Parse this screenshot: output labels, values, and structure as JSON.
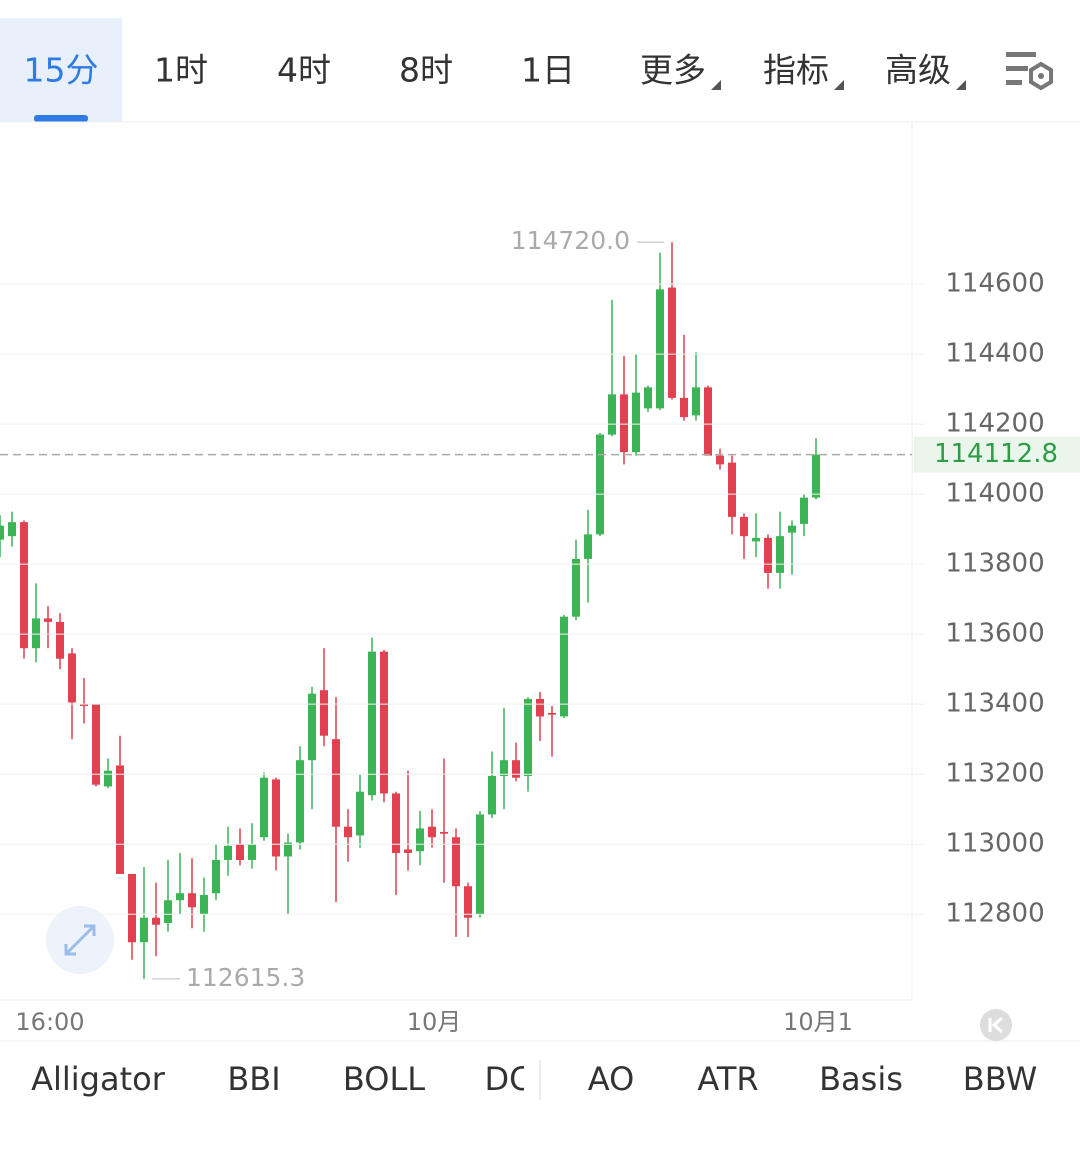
{
  "tabs": [
    "15分",
    "1时",
    "4时",
    "8时",
    "1日",
    "更多",
    "指标",
    "高级"
  ],
  "indicators": [
    "Alligator",
    "BBI",
    "BOLL",
    "DC",
    "AO",
    "ATR",
    "Basis",
    "BBW"
  ],
  "chart_data": {
    "type": "candlestick",
    "categories": [
      null,
      null,
      null,
      null,
      "16:00",
      null,
      null,
      null,
      null,
      null,
      null,
      null,
      null,
      null,
      null,
      null,
      null,
      null,
      null,
      null,
      null,
      null,
      null,
      null,
      null,
      null,
      null,
      null,
      null,
      null,
      null,
      null,
      null,
      null,
      null,
      null,
      "10月",
      null,
      null,
      null,
      null,
      null,
      null,
      null,
      null,
      null,
      null,
      null,
      null,
      null,
      null,
      null,
      null,
      null,
      null,
      null,
      null,
      null,
      null,
      null,
      null,
      null,
      null,
      null,
      null,
      null,
      null,
      null,
      "10月1"
    ],
    "open": [
      113870,
      113880,
      113920,
      113560,
      113645,
      113635,
      113545,
      113400,
      113400,
      113165,
      113225,
      112915,
      112720,
      112790,
      112775,
      112840,
      112860,
      112800,
      112860,
      112955,
      113000,
      112955,
      113020,
      113185,
      112965,
      113005,
      113240,
      113440,
      113300,
      113050,
      113025,
      113140,
      113550,
      113145,
      112985,
      112980,
      113050,
      113035,
      113020,
      112880,
      112800,
      113085,
      113195,
      113240,
      113195,
      113415,
      113375,
      113365,
      113650,
      113815,
      113885,
      114170,
      114285,
      114120,
      114245,
      114245,
      114590,
      114275,
      114225,
      114305,
      114110,
      114090,
      113935,
      113865,
      113875,
      113775,
      113890,
      113915,
      113990
    ],
    "high": [
      113940,
      113950,
      113925,
      113745,
      113680,
      113660,
      113560,
      113475,
      113400,
      113245,
      113310,
      112915,
      112935,
      112890,
      112955,
      112975,
      112960,
      112905,
      113000,
      113050,
      113045,
      113060,
      113205,
      113190,
      113030,
      113280,
      113450,
      113560,
      113420,
      113100,
      113200,
      113590,
      113555,
      113150,
      113210,
      113095,
      113100,
      113245,
      113045,
      112890,
      113095,
      113265,
      113390,
      113290,
      113420,
      113435,
      113395,
      113655,
      113870,
      113955,
      114175,
      114555,
      114395,
      114400,
      114310,
      114690,
      114720.0,
      114455,
      114405,
      114310,
      114130,
      114110,
      113945,
      113945,
      113885,
      113950,
      113925,
      114000,
      114160
    ],
    "low": [
      113820,
      113850,
      113530,
      113520,
      113560,
      113500,
      113300,
      113345,
      113165,
      113160,
      112915,
      112670,
      112615.3,
      112680,
      112750,
      112800,
      112760,
      112750,
      112840,
      112910,
      112940,
      112930,
      113010,
      112925,
      112800,
      112985,
      113100,
      113280,
      112835,
      112950,
      112990,
      113125,
      113120,
      112855,
      112925,
      112940,
      112990,
      112890,
      112735,
      112735,
      112790,
      113075,
      113100,
      113180,
      113150,
      113295,
      113250,
      113360,
      113640,
      113690,
      113880,
      114165,
      114085,
      114110,
      114235,
      114240,
      114270,
      114210,
      114210,
      114110,
      114070,
      113885,
      113815,
      113820,
      113730,
      113730,
      113770,
      113880,
      113985
    ],
    "close": [
      113910,
      113920,
      113560,
      113645,
      113635,
      113530,
      113405,
      113395,
      113170,
      113210,
      112915,
      112720,
      112790,
      112770,
      112840,
      112860,
      112820,
      112855,
      112955,
      112995,
      112955,
      113000,
      113190,
      112965,
      113005,
      113240,
      113430,
      113310,
      113050,
      113020,
      113150,
      113550,
      113145,
      112975,
      112975,
      113045,
      113020,
      113030,
      112880,
      112790,
      113085,
      113195,
      113240,
      113190,
      113415,
      113365,
      113370,
      113650,
      113815,
      113885,
      114170,
      114285,
      114120,
      114290,
      114305,
      114585,
      114275,
      114220,
      114305,
      114110,
      114085,
      113935,
      113880,
      113875,
      113775,
      113880,
      113910,
      113990,
      114112.8
    ],
    "up_color": "#3cb455",
    "down_color": "#e0404f",
    "ylim": [
      112555,
      115063
    ],
    "yticks": [
      112800,
      113000,
      113200,
      113400,
      113600,
      113800,
      114000,
      114200,
      114400,
      114600
    ],
    "grid": true,
    "max_label": "114720.0",
    "min_label": "112615.3",
    "last_price_label": "114112.8"
  }
}
